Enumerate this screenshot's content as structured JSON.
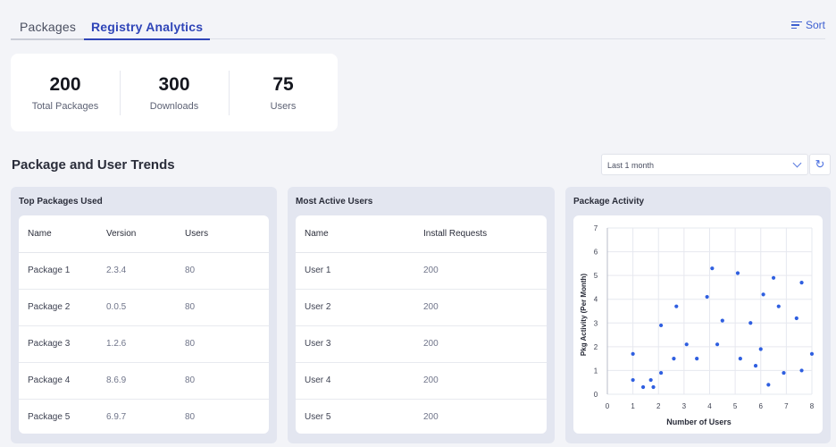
{
  "tabs": [
    {
      "label": "Packages",
      "active": false
    },
    {
      "label": "Registry Analytics",
      "active": true
    }
  ],
  "sort_label": "Sort",
  "stats": [
    {
      "value": "200",
      "label": "Total Packages"
    },
    {
      "value": "300",
      "label": "Downloads"
    },
    {
      "value": "75",
      "label": "Users"
    }
  ],
  "section_title": "Package and User Trends",
  "filter": {
    "selected": "Last 1 month"
  },
  "top_packages": {
    "title": "Top Packages Used",
    "headers": [
      "Name",
      "Version",
      "Users"
    ],
    "rows": [
      [
        "Package 1",
        "2.3.4",
        "80"
      ],
      [
        "Package 2",
        "0.0.5",
        "80"
      ],
      [
        "Package 3",
        "1.2.6",
        "80"
      ],
      [
        "Package 4",
        "8.6.9",
        "80"
      ],
      [
        "Package 5",
        "6.9.7",
        "80"
      ]
    ]
  },
  "active_users": {
    "title": "Most Active Users",
    "headers": [
      "Name",
      "Install Requests"
    ],
    "rows": [
      [
        "User 1",
        "200"
      ],
      [
        "User 2",
        "200"
      ],
      [
        "User 3",
        "200"
      ],
      [
        "User 4",
        "200"
      ],
      [
        "User 5",
        "200"
      ]
    ]
  },
  "package_activity": {
    "title": "Package Activity",
    "chart_data": {
      "type": "scatter",
      "xlabel": "Number of Users",
      "ylabel": "Pkg Activity (Per Month)",
      "xlim": [
        0,
        8
      ],
      "ylim": [
        0,
        7
      ],
      "xticks": [
        "0",
        "1",
        "2",
        "3",
        "4",
        "5",
        "6",
        "7",
        "8"
      ],
      "yticks": [
        "0",
        "1",
        "2",
        "3",
        "4",
        "5",
        "6",
        "7"
      ],
      "grid": true,
      "point_color": "#2f5fe0",
      "points": [
        {
          "x": 1.0,
          "y": 1.7
        },
        {
          "x": 1.0,
          "y": 0.6
        },
        {
          "x": 1.4,
          "y": 0.3
        },
        {
          "x": 1.7,
          "y": 0.6
        },
        {
          "x": 1.8,
          "y": 0.3
        },
        {
          "x": 2.1,
          "y": 0.9
        },
        {
          "x": 2.1,
          "y": 2.9
        },
        {
          "x": 2.6,
          "y": 1.5
        },
        {
          "x": 2.7,
          "y": 3.7
        },
        {
          "x": 3.1,
          "y": 2.1
        },
        {
          "x": 3.5,
          "y": 1.5
        },
        {
          "x": 3.9,
          "y": 4.1
        },
        {
          "x": 4.1,
          "y": 5.3
        },
        {
          "x": 4.3,
          "y": 2.1
        },
        {
          "x": 4.5,
          "y": 3.1
        },
        {
          "x": 5.1,
          "y": 5.1
        },
        {
          "x": 5.2,
          "y": 1.5
        },
        {
          "x": 5.6,
          "y": 3.0
        },
        {
          "x": 5.8,
          "y": 1.2
        },
        {
          "x": 6.0,
          "y": 1.9
        },
        {
          "x": 6.1,
          "y": 4.2
        },
        {
          "x": 6.3,
          "y": 0.4
        },
        {
          "x": 6.5,
          "y": 4.9
        },
        {
          "x": 6.7,
          "y": 3.7
        },
        {
          "x": 6.9,
          "y": 0.9
        },
        {
          "x": 7.4,
          "y": 3.2
        },
        {
          "x": 7.6,
          "y": 1.0
        },
        {
          "x": 7.6,
          "y": 4.7
        },
        {
          "x": 8.0,
          "y": 1.7
        }
      ]
    }
  }
}
